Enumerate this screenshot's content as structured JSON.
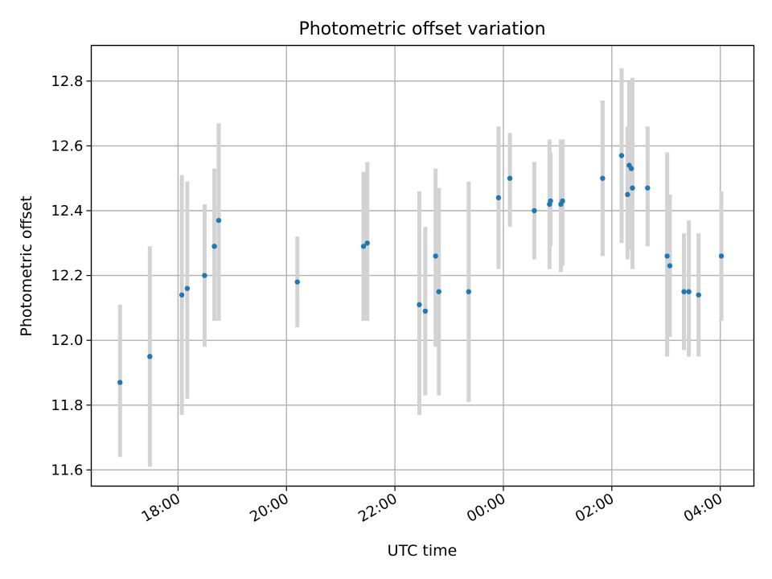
{
  "chart_data": {
    "type": "scatter",
    "title": "Photometric offset variation",
    "xlabel": "UTC time",
    "ylabel": "Photometric offset",
    "grid": true,
    "x_unit": "hours since 16:00 UTC",
    "xlim": [
      0.4,
      12.62
    ],
    "ylim": [
      11.55,
      12.91
    ],
    "x_ticks": [
      {
        "value": 2,
        "label": "18:00"
      },
      {
        "value": 4,
        "label": "20:00"
      },
      {
        "value": 6,
        "label": "22:00"
      },
      {
        "value": 8,
        "label": "00:00"
      },
      {
        "value": 10,
        "label": "02:00"
      },
      {
        "value": 12,
        "label": "04:00"
      }
    ],
    "y_ticks": [
      {
        "value": 11.6,
        "label": "11.6"
      },
      {
        "value": 11.8,
        "label": "11.8"
      },
      {
        "value": 12.0,
        "label": "12.0"
      },
      {
        "value": 12.2,
        "label": "12.2"
      },
      {
        "value": 12.4,
        "label": "12.4"
      },
      {
        "value": 12.6,
        "label": "12.6"
      },
      {
        "value": 12.8,
        "label": "12.8"
      }
    ],
    "colors": {
      "point": "#1f77b4",
      "errorbar": "#d3d3d3",
      "grid": "#b0b0b0"
    },
    "series": [
      {
        "name": "Photometric offset",
        "points": [
          {
            "x": 0.93,
            "y": 11.87,
            "ylo": 11.64,
            "yhi": 12.11
          },
          {
            "x": 1.48,
            "y": 11.95,
            "ylo": 11.61,
            "yhi": 12.29
          },
          {
            "x": 2.07,
            "y": 12.14,
            "ylo": 11.77,
            "yhi": 12.51
          },
          {
            "x": 2.17,
            "y": 12.16,
            "ylo": 11.82,
            "yhi": 12.49
          },
          {
            "x": 2.49,
            "y": 12.2,
            "ylo": 11.98,
            "yhi": 12.42
          },
          {
            "x": 2.67,
            "y": 12.29,
            "ylo": 12.06,
            "yhi": 12.53
          },
          {
            "x": 2.75,
            "y": 12.37,
            "ylo": 12.06,
            "yhi": 12.67
          },
          {
            "x": 4.2,
            "y": 12.18,
            "ylo": 12.04,
            "yhi": 12.32
          },
          {
            "x": 5.42,
            "y": 12.29,
            "ylo": 12.06,
            "yhi": 12.52
          },
          {
            "x": 5.49,
            "y": 12.3,
            "ylo": 12.06,
            "yhi": 12.55
          },
          {
            "x": 6.45,
            "y": 12.11,
            "ylo": 11.77,
            "yhi": 12.46
          },
          {
            "x": 6.56,
            "y": 12.09,
            "ylo": 11.83,
            "yhi": 12.35
          },
          {
            "x": 6.75,
            "y": 12.26,
            "ylo": 11.98,
            "yhi": 12.53
          },
          {
            "x": 6.81,
            "y": 12.15,
            "ylo": 11.83,
            "yhi": 12.47
          },
          {
            "x": 7.36,
            "y": 12.15,
            "ylo": 11.81,
            "yhi": 12.49
          },
          {
            "x": 7.91,
            "y": 12.44,
            "ylo": 12.22,
            "yhi": 12.66
          },
          {
            "x": 8.12,
            "y": 12.5,
            "ylo": 12.35,
            "yhi": 12.64
          },
          {
            "x": 8.57,
            "y": 12.4,
            "ylo": 12.25,
            "yhi": 12.55
          },
          {
            "x": 8.85,
            "y": 12.42,
            "ylo": 12.22,
            "yhi": 12.62
          },
          {
            "x": 8.87,
            "y": 12.43,
            "ylo": 12.29,
            "yhi": 12.58
          },
          {
            "x": 9.06,
            "y": 12.42,
            "ylo": 12.21,
            "yhi": 12.62
          },
          {
            "x": 9.09,
            "y": 12.43,
            "ylo": 12.23,
            "yhi": 12.62
          },
          {
            "x": 9.83,
            "y": 12.5,
            "ylo": 12.26,
            "yhi": 12.74
          },
          {
            "x": 10.18,
            "y": 12.57,
            "ylo": 12.3,
            "yhi": 12.84
          },
          {
            "x": 10.29,
            "y": 12.45,
            "ylo": 12.25,
            "yhi": 12.66
          },
          {
            "x": 10.32,
            "y": 12.54,
            "ylo": 12.28,
            "yhi": 12.8
          },
          {
            "x": 10.36,
            "y": 12.53,
            "ylo": 12.29,
            "yhi": 12.73
          },
          {
            "x": 10.38,
            "y": 12.47,
            "ylo": 12.22,
            "yhi": 12.81
          },
          {
            "x": 10.66,
            "y": 12.47,
            "ylo": 12.29,
            "yhi": 12.66
          },
          {
            "x": 11.02,
            "y": 12.26,
            "ylo": 11.95,
            "yhi": 12.58
          },
          {
            "x": 11.07,
            "y": 12.23,
            "ylo": 12.01,
            "yhi": 12.45
          },
          {
            "x": 11.33,
            "y": 12.15,
            "ylo": 11.97,
            "yhi": 12.33
          },
          {
            "x": 11.42,
            "y": 12.15,
            "ylo": 11.95,
            "yhi": 12.37
          },
          {
            "x": 11.6,
            "y": 12.14,
            "ylo": 11.95,
            "yhi": 12.33
          },
          {
            "x": 12.02,
            "y": 12.26,
            "ylo": 12.06,
            "yhi": 12.46
          }
        ]
      }
    ]
  }
}
